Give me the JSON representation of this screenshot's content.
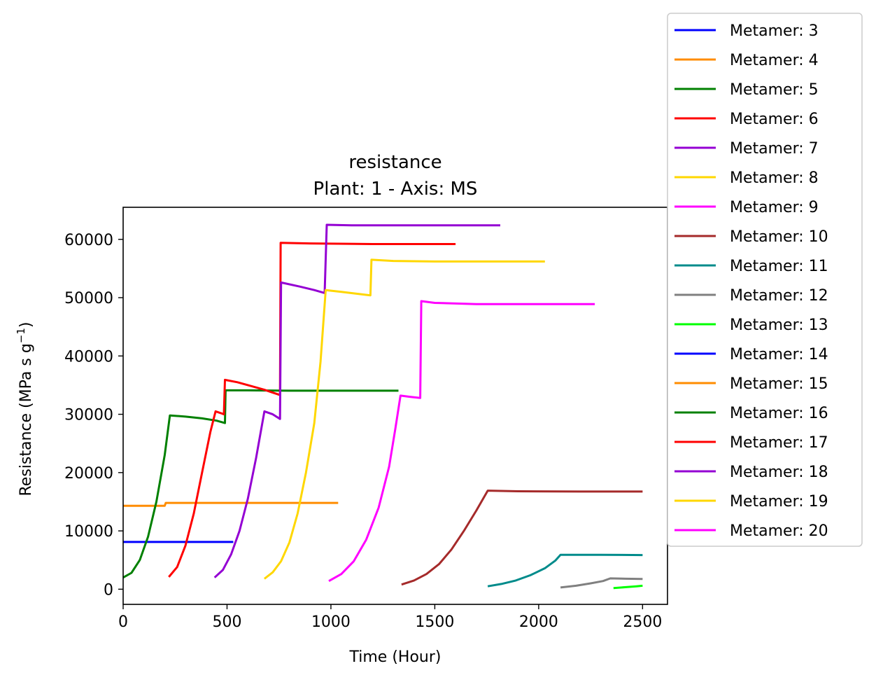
{
  "chart_data": {
    "type": "line",
    "title": "resistance",
    "subtitle": "Plant: 1 - Axis: MS",
    "xlabel": "Time (Hour)",
    "ylabel_main": "Resistance (MPa s g",
    "ylabel_sup": "−1",
    "ylabel_end": ")",
    "xlim": [
      0,
      2620
    ],
    "ylim": [
      -2600,
      65500
    ],
    "xticks": [
      0,
      500,
      1000,
      1500,
      2000,
      2500
    ],
    "yticks": [
      0,
      10000,
      20000,
      30000,
      40000,
      50000,
      60000
    ],
    "legend_position": "outside-right",
    "grid": false,
    "series": [
      {
        "name": "Metamer: 3",
        "color": "#0000ff",
        "points": [
          [
            0,
            8100
          ],
          [
            530,
            8100
          ]
        ]
      },
      {
        "name": "Metamer: 4",
        "color": "#ff8c00",
        "points": [
          [
            0,
            14300
          ],
          [
            200,
            14300
          ],
          [
            205,
            14800
          ],
          [
            1035,
            14800
          ]
        ]
      },
      {
        "name": "Metamer: 5",
        "color": "#008000",
        "points": [
          [
            0,
            2000
          ],
          [
            40,
            2800
          ],
          [
            80,
            5000
          ],
          [
            120,
            9000
          ],
          [
            160,
            15000
          ],
          [
            200,
            23000
          ],
          [
            225,
            29800
          ],
          [
            300,
            29600
          ],
          [
            380,
            29300
          ],
          [
            450,
            28900
          ],
          [
            490,
            28500
          ],
          [
            493,
            34100
          ],
          [
            600,
            34100
          ],
          [
            800,
            34050
          ],
          [
            1000,
            34050
          ],
          [
            1200,
            34050
          ],
          [
            1325,
            34050
          ]
        ]
      },
      {
        "name": "Metamer: 6",
        "color": "#ff0000",
        "points": [
          [
            220,
            2100
          ],
          [
            260,
            3800
          ],
          [
            300,
            7500
          ],
          [
            340,
            13000
          ],
          [
            380,
            20000
          ],
          [
            420,
            27000
          ],
          [
            445,
            30500
          ],
          [
            470,
            30200
          ],
          [
            485,
            30000
          ],
          [
            490,
            35900
          ],
          [
            550,
            35500
          ],
          [
            620,
            34800
          ],
          [
            680,
            34200
          ],
          [
            755,
            33300
          ],
          [
            758,
            59400
          ],
          [
            900,
            59300
          ],
          [
            1200,
            59200
          ],
          [
            1600,
            59200
          ]
        ]
      },
      {
        "name": "Metamer: 7",
        "color": "#9400d3",
        "points": [
          [
            440,
            2000
          ],
          [
            480,
            3300
          ],
          [
            520,
            6000
          ],
          [
            560,
            10000
          ],
          [
            600,
            15500
          ],
          [
            640,
            22500
          ],
          [
            680,
            30500
          ],
          [
            720,
            30000
          ],
          [
            755,
            29200
          ],
          [
            760,
            52600
          ],
          [
            850,
            51900
          ],
          [
            920,
            51300
          ],
          [
            970,
            50800
          ],
          [
            980,
            62500
          ],
          [
            1100,
            62400
          ],
          [
            1400,
            62400
          ],
          [
            1815,
            62400
          ]
        ]
      },
      {
        "name": "Metamer: 8",
        "color": "#ffd700",
        "points": [
          [
            680,
            1800
          ],
          [
            720,
            2900
          ],
          [
            760,
            4800
          ],
          [
            800,
            8000
          ],
          [
            840,
            13000
          ],
          [
            880,
            20000
          ],
          [
            920,
            28500
          ],
          [
            950,
            39000
          ],
          [
            975,
            51300
          ],
          [
            1050,
            51000
          ],
          [
            1120,
            50700
          ],
          [
            1190,
            50400
          ],
          [
            1195,
            56500
          ],
          [
            1300,
            56300
          ],
          [
            1500,
            56200
          ],
          [
            1800,
            56200
          ],
          [
            2030,
            56200
          ]
        ]
      },
      {
        "name": "Metamer: 9",
        "color": "#ff00ff",
        "points": [
          [
            990,
            1400
          ],
          [
            1050,
            2600
          ],
          [
            1110,
            4800
          ],
          [
            1170,
            8500
          ],
          [
            1230,
            14000
          ],
          [
            1280,
            21000
          ],
          [
            1310,
            27500
          ],
          [
            1335,
            33200
          ],
          [
            1380,
            33000
          ],
          [
            1430,
            32800
          ],
          [
            1435,
            49400
          ],
          [
            1500,
            49100
          ],
          [
            1700,
            48900
          ],
          [
            2000,
            48900
          ],
          [
            2270,
            48900
          ]
        ]
      },
      {
        "name": "Metamer: 10",
        "color": "#a52a2a",
        "points": [
          [
            1340,
            800
          ],
          [
            1400,
            1500
          ],
          [
            1460,
            2600
          ],
          [
            1520,
            4300
          ],
          [
            1580,
            6800
          ],
          [
            1640,
            10000
          ],
          [
            1700,
            13500
          ],
          [
            1755,
            16900
          ],
          [
            1900,
            16800
          ],
          [
            2200,
            16750
          ],
          [
            2500,
            16750
          ]
        ]
      },
      {
        "name": "Metamer: 11",
        "color": "#008b8b",
        "points": [
          [
            1755,
            500
          ],
          [
            1820,
            900
          ],
          [
            1890,
            1500
          ],
          [
            1960,
            2400
          ],
          [
            2030,
            3600
          ],
          [
            2080,
            4900
          ],
          [
            2105,
            5900
          ],
          [
            2300,
            5900
          ],
          [
            2500,
            5850
          ]
        ]
      },
      {
        "name": "Metamer: 12",
        "color": "#808080",
        "points": [
          [
            2105,
            300
          ],
          [
            2180,
            600
          ],
          [
            2250,
            1000
          ],
          [
            2310,
            1400
          ],
          [
            2345,
            1850
          ],
          [
            2420,
            1800
          ],
          [
            2500,
            1750
          ]
        ]
      },
      {
        "name": "Metamer: 13",
        "color": "#00ff00",
        "points": [
          [
            2360,
            200
          ],
          [
            2420,
            350
          ],
          [
            2470,
            500
          ],
          [
            2500,
            600
          ]
        ]
      },
      {
        "name": "Metamer: 14",
        "color": "#0000ff",
        "points": []
      },
      {
        "name": "Metamer: 15",
        "color": "#ff8c00",
        "points": []
      },
      {
        "name": "Metamer: 16",
        "color": "#008000",
        "points": []
      },
      {
        "name": "Metamer: 17",
        "color": "#ff0000",
        "points": []
      },
      {
        "name": "Metamer: 18",
        "color": "#9400d3",
        "points": []
      },
      {
        "name": "Metamer: 19",
        "color": "#ffd700",
        "points": []
      },
      {
        "name": "Metamer: 20",
        "color": "#ff00ff",
        "points": []
      }
    ]
  }
}
